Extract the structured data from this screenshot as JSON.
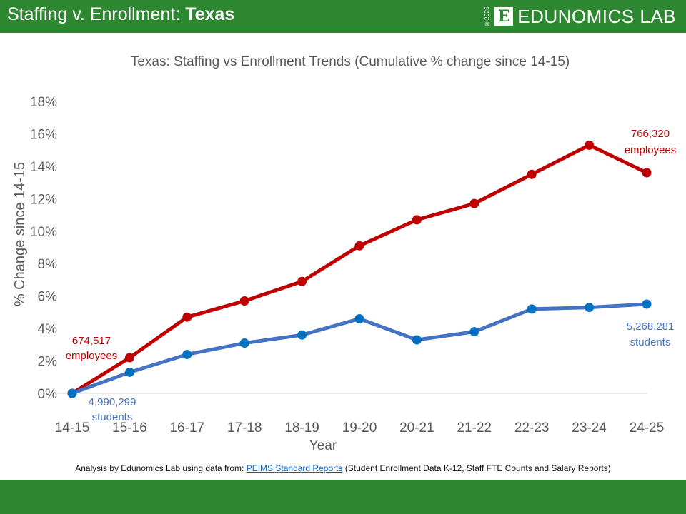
{
  "header": {
    "title_prefix": "Staffing v. Enrollment: ",
    "title_state": "Texas",
    "logo_copyright": "©2025",
    "logo_letter": "E",
    "logo_text": "EDUNOMICS LAB"
  },
  "footer": {
    "source_prefix": "Analysis by Edunomics Lab using data from: ",
    "source_link": "PEIMS Standard Reports",
    "source_suffix": " (Student Enrollment Data K-12, Staff FTE Counts and Salary Reports)"
  },
  "colors": {
    "brand_green": "#2e8731",
    "staff": "#c00000",
    "students_line": "#4472c4",
    "students_marker": "#0070c0"
  },
  "chart_data": {
    "type": "line",
    "title": "Texas: Staffing vs Enrollment Trends (Cumulative % change since 14-15)",
    "xlabel": "Year",
    "ylabel": "% Change since 14-15",
    "ylim": [
      0,
      18
    ],
    "yticks": [
      "0%",
      "2%",
      "4%",
      "6%",
      "8%",
      "10%",
      "12%",
      "14%",
      "16%",
      "18%"
    ],
    "categories": [
      "14-15",
      "15-16",
      "16-17",
      "17-18",
      "18-19",
      "19-20",
      "20-21",
      "21-22",
      "22-23",
      "23-24",
      "24-25"
    ],
    "grid": false,
    "series": [
      {
        "name": "Staff",
        "values": [
          0,
          2.2,
          4.7,
          5.7,
          6.9,
          9.1,
          10.7,
          11.7,
          13.5,
          15.3,
          13.6
        ]
      },
      {
        "name": "Students",
        "values": [
          0,
          1.3,
          2.4,
          3.1,
          3.6,
          4.6,
          3.3,
          3.8,
          5.2,
          5.3,
          5.5
        ]
      }
    ],
    "annotations": {
      "staff_start": [
        "674,517",
        "employees"
      ],
      "staff_end": [
        "766,320",
        "employees"
      ],
      "students_start": [
        "4,990,299",
        "students"
      ],
      "students_end": [
        "5,268,281",
        "students"
      ]
    }
  }
}
